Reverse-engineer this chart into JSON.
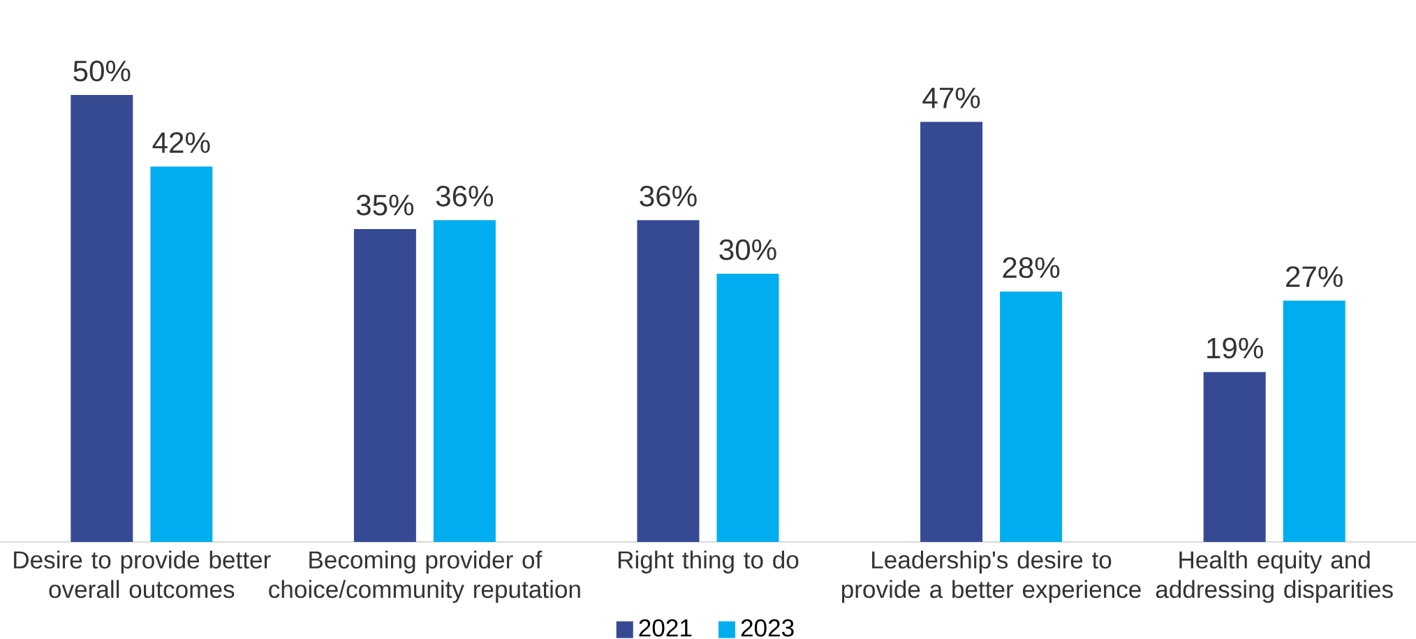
{
  "chart_data": {
    "type": "bar",
    "categories": [
      "Desire to provide better overall outcomes",
      "Becoming provider of choice/community reputation",
      "Right thing to do",
      "Leadership's desire to provide a better experience",
      "Health equity and addressing disparities"
    ],
    "series": [
      {
        "name": "2021",
        "color": "#364a94",
        "values": [
          50,
          35,
          36,
          47,
          19
        ],
        "value_labels": [
          "50%",
          "35%",
          "36%",
          "47%",
          "19%"
        ]
      },
      {
        "name": "2023",
        "color": "#00aeef",
        "values": [
          42,
          36,
          30,
          28,
          27
        ],
        "value_labels": [
          "42%",
          "36%",
          "30%",
          "28%",
          "27%"
        ]
      }
    ],
    "tick_labels": "x",
    "legend": "bottom"
  }
}
